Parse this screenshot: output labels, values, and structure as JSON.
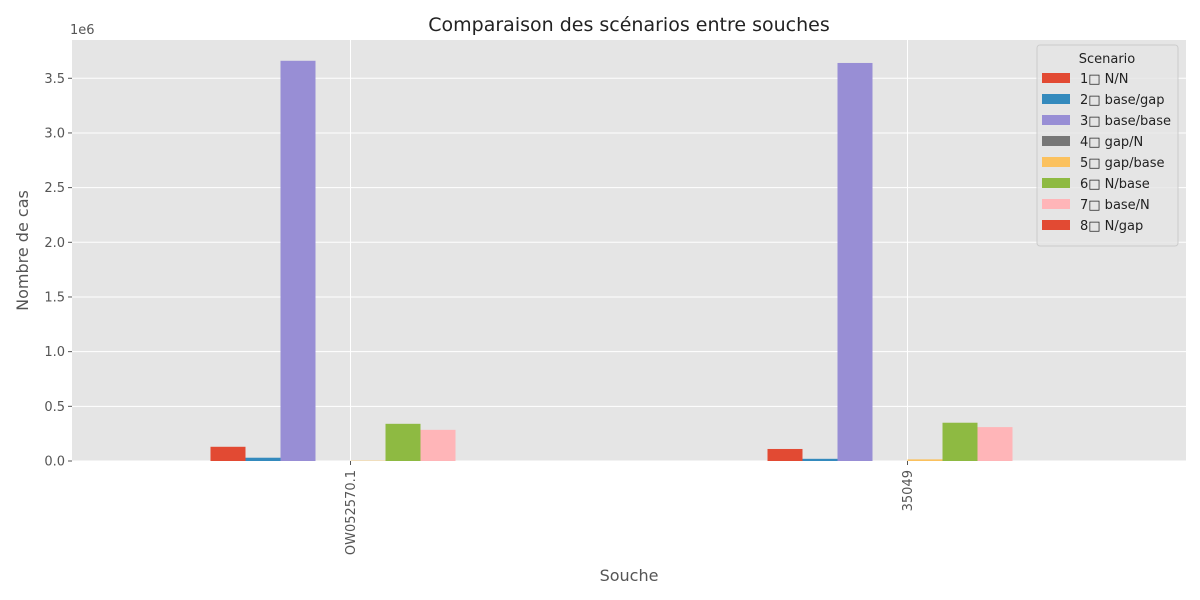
{
  "chart_data": {
    "type": "bar",
    "title": "Comparaison des scénarios entre souches",
    "xlabel": "Souche",
    "ylabel": "Nombre de cas",
    "y_offset_text": "1e6",
    "ylim": [
      0,
      3850000
    ],
    "yticks": [
      0,
      500000,
      1000000,
      1500000,
      2000000,
      2500000,
      3000000,
      3500000
    ],
    "ytick_labels": [
      "0.0",
      "0.5",
      "1.0",
      "1.5",
      "2.0",
      "2.5",
      "3.0",
      "3.5"
    ],
    "grid": true,
    "legend_position": "top-right",
    "legend_title": "Scenario",
    "categories": [
      "OW052570.1",
      "35049"
    ],
    "series": [
      {
        "name": "1□ N/N",
        "color": "#E24A33",
        "values": [
          130000,
          110000
        ]
      },
      {
        "name": "2□ base/gap",
        "color": "#348ABD",
        "values": [
          30000,
          20000
        ]
      },
      {
        "name": "3□ base/base",
        "color": "#988ED5",
        "values": [
          3660000,
          3640000
        ]
      },
      {
        "name": "4□ gap/N",
        "color": "#777777",
        "values": [
          0,
          0
        ]
      },
      {
        "name": "5□ gap/base",
        "color": "#FBC15E",
        "values": [
          3000,
          15000
        ]
      },
      {
        "name": "6□ N/base",
        "color": "#8EBA42",
        "values": [
          340000,
          350000
        ]
      },
      {
        "name": "7□ base/N",
        "color": "#FFB5B8",
        "values": [
          285000,
          310000
        ]
      },
      {
        "name": "8□ N/gap",
        "color": "#E24A33",
        "values": [
          0,
          0
        ]
      }
    ]
  }
}
